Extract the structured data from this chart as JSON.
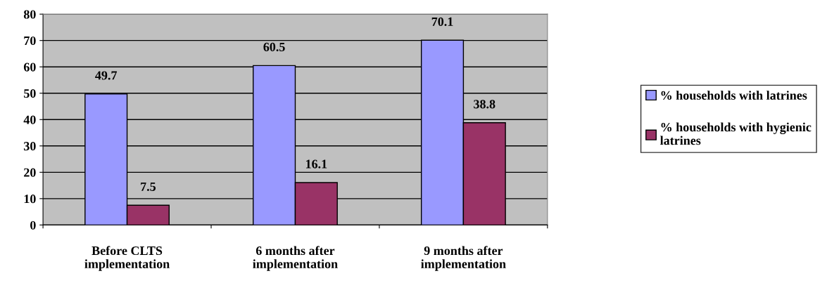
{
  "chart_data": {
    "type": "bar",
    "categories": [
      "Before CLTS\nimplementation",
      "6 months after\nimplementation",
      "9 months after\nimplementation"
    ],
    "series": [
      {
        "name": "% households with latrines",
        "color": "#9999ff",
        "values": [
          49.7,
          60.5,
          70.1
        ]
      },
      {
        "name": "% households with hygienic latrines",
        "color": "#993366",
        "values": [
          7.5,
          16.1,
          38.8
        ]
      }
    ],
    "ylim": [
      0,
      80
    ],
    "yticks": [
      0,
      10,
      20,
      30,
      40,
      50,
      60,
      70,
      80
    ],
    "grid": "y",
    "legend": "right",
    "data_labels": true
  }
}
